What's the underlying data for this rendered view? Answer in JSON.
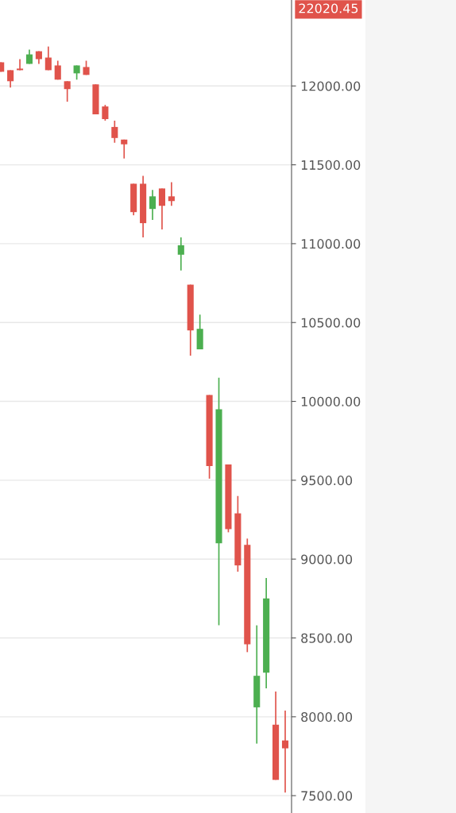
{
  "chart_data": {
    "type": "candlestick",
    "categories": [
      null,
      null,
      null,
      null,
      null,
      null,
      null,
      null,
      null,
      null,
      null,
      null,
      null,
      null,
      null,
      null,
      null,
      null,
      null,
      null,
      null,
      null,
      null,
      null,
      null,
      null,
      null,
      null,
      null,
      null,
      null
    ],
    "ohlc": [
      [
        12150,
        12150,
        12090,
        12090
      ],
      [
        12100,
        12100,
        11990,
        12030
      ],
      [
        12110,
        12170,
        12100,
        12100
      ],
      [
        12140,
        12230,
        12140,
        12200
      ],
      [
        12220,
        12220,
        12140,
        12170
      ],
      [
        12180,
        12250,
        12100,
        12100
      ],
      [
        12130,
        12160,
        12040,
        12040
      ],
      [
        12030,
        12030,
        11900,
        11980
      ],
      [
        12080,
        12130,
        12040,
        12130
      ],
      [
        12120,
        12160,
        12070,
        12070
      ],
      [
        12010,
        12010,
        11820,
        11820
      ],
      [
        11870,
        11880,
        11780,
        11790
      ],
      [
        11740,
        11780,
        11640,
        11670
      ],
      [
        11660,
        11660,
        11540,
        11630
      ],
      [
        11380,
        11380,
        11180,
        11200
      ],
      [
        11380,
        11430,
        11040,
        11130
      ],
      [
        11220,
        11340,
        11150,
        11300
      ],
      [
        11350,
        11350,
        11090,
        11240
      ],
      [
        11300,
        11390,
        11240,
        11270
      ],
      [
        10930,
        11040,
        10830,
        10990
      ],
      [
        10740,
        10740,
        10290,
        10450
      ],
      [
        10330,
        10550,
        10330,
        10460
      ],
      [
        10040,
        10040,
        9510,
        9590
      ],
      [
        9100,
        10150,
        8580,
        9950
      ],
      [
        9600,
        9600,
        9170,
        9190
      ],
      [
        9290,
        9400,
        8920,
        8960
      ],
      [
        9090,
        9130,
        8410,
        8460
      ],
      [
        8060,
        8580,
        7830,
        8260
      ],
      [
        8280,
        8880,
        8180,
        8750
      ],
      [
        7950,
        8160,
        7600,
        7600
      ],
      [
        7850,
        8040,
        7520,
        7800
      ]
    ],
    "colors": [
      "#e0534b",
      "#e0534b",
      "#e0534b",
      "#4caf50",
      "#e0534b",
      "#e0534b",
      "#e0534b",
      "#e0534b",
      "#4caf50",
      "#e0534b",
      "#e0534b",
      "#e0534b",
      "#e0534b",
      "#e0534b",
      "#e0534b",
      "#e0534b",
      "#4caf50",
      "#e0534b",
      "#e0534b",
      "#4caf50",
      "#e0534b",
      "#4caf50",
      "#e0534b",
      "#4caf50",
      "#e0534b",
      "#e0534b",
      "#e0534b",
      "#4caf50",
      "#4caf50",
      "#e0534b",
      "#e0534b"
    ],
    "ylim": [
      7390,
      12545
    ],
    "yticks": [
      {
        "value": 7500,
        "label": "7500.00"
      },
      {
        "value": 8000,
        "label": "8000.00"
      },
      {
        "value": 8500,
        "label": "8500.00"
      },
      {
        "value": 9000,
        "label": "9000.00"
      },
      {
        "value": 9500,
        "label": "9500.00"
      },
      {
        "value": 10000,
        "label": "10000.00"
      },
      {
        "value": 10500,
        "label": "10500.00"
      },
      {
        "value": 11000,
        "label": "11000.00"
      },
      {
        "value": 11500,
        "label": "11500.00"
      },
      {
        "value": 12000,
        "label": "12000.00"
      }
    ],
    "tick_labels": "y",
    "grid": "y",
    "annotations": [
      "22020.45"
    ]
  }
}
